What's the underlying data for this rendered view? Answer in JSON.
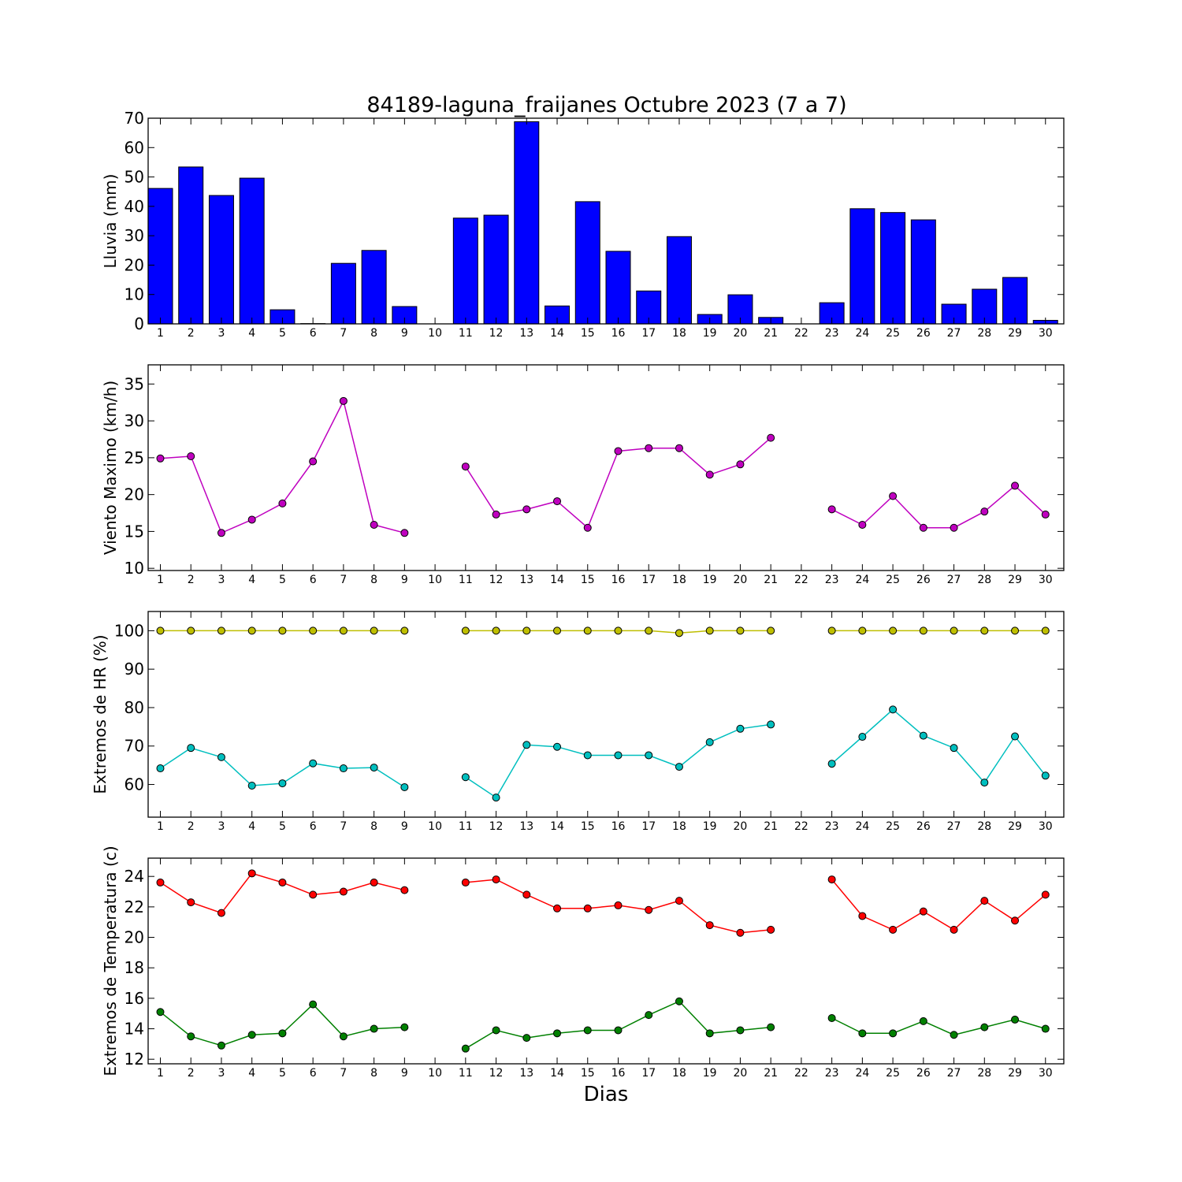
{
  "title": "84189-laguna_fraijanes Octubre 2023  (7 a 7)",
  "xlabel": "Dias",
  "days": [
    "1",
    "2",
    "3",
    "4",
    "5",
    "6",
    "7",
    "8",
    "9",
    "10",
    "11",
    "12",
    "13",
    "14",
    "15",
    "16",
    "17",
    "18",
    "19",
    "20",
    "21",
    "22",
    "23",
    "24",
    "25",
    "26",
    "27",
    "28",
    "29",
    "30"
  ],
  "chart_data": [
    {
      "type": "bar",
      "ylabel": "Lluvia (mm)",
      "ylim": [
        0,
        70
      ],
      "yticks": [
        0,
        10,
        20,
        30,
        40,
        50,
        60,
        70
      ],
      "color": "#0000ff",
      "series": [
        {
          "name": "",
          "values": [
            46.1,
            53.4,
            43.7,
            49.6,
            4.8,
            0.1,
            20.6,
            25.0,
            5.9,
            0,
            36.0,
            37.0,
            68.8,
            6.1,
            41.6,
            24.7,
            11.2,
            29.7,
            3.2,
            9.9,
            2.2,
            0,
            7.2,
            39.2,
            37.9,
            35.4,
            6.7,
            11.8,
            15.8,
            1.2
          ]
        }
      ]
    },
    {
      "type": "line",
      "ylabel": "Viento Maximo (km/h)",
      "ylim": [
        9.7,
        37.6
      ],
      "yticks": [
        10,
        15,
        20,
        25,
        30,
        35
      ],
      "series": [
        {
          "name": "",
          "color": "#bf00bf",
          "values": [
            24.9,
            25.2,
            14.8,
            16.6,
            18.8,
            24.5,
            32.7,
            15.9,
            14.8,
            null,
            23.8,
            17.3,
            18.0,
            19.1,
            15.5,
            25.9,
            26.3,
            26.3,
            22.7,
            24.1,
            27.7,
            null,
            18.0,
            15.9,
            19.8,
            15.5,
            15.5,
            17.7,
            21.2,
            17.3
          ]
        }
      ]
    },
    {
      "type": "line",
      "ylabel": "Extremos de HR (%)",
      "ylim": [
        51.5,
        105
      ],
      "yticks": [
        60,
        70,
        80,
        90,
        100
      ],
      "series": [
        {
          "name": "",
          "color": "#bfbf00",
          "values": [
            100,
            100,
            100,
            100,
            100,
            100,
            100,
            100,
            100,
            null,
            100,
            100,
            100,
            100,
            100,
            100,
            100,
            99.4,
            100,
            100,
            100,
            null,
            100,
            100,
            100,
            100,
            100,
            100,
            100,
            100
          ]
        },
        {
          "name": "",
          "color": "#00bfbf",
          "values": [
            64.2,
            69.5,
            67.1,
            59.7,
            60.3,
            65.5,
            64.2,
            64.4,
            59.3,
            null,
            61.9,
            56.6,
            70.3,
            69.8,
            67.6,
            67.6,
            67.6,
            64.6,
            71.0,
            74.5,
            75.6,
            null,
            65.4,
            72.4,
            79.5,
            72.7,
            69.5,
            60.5,
            72.5,
            62.3
          ]
        }
      ]
    },
    {
      "type": "line",
      "ylabel": "Extremos de Temperatura (c)",
      "ylim": [
        11.7,
        25.2
      ],
      "yticks": [
        12,
        14,
        16,
        18,
        20,
        22,
        24
      ],
      "series": [
        {
          "name": "",
          "color": "#ff0000",
          "values": [
            23.6,
            22.3,
            21.6,
            24.2,
            23.6,
            22.8,
            23.0,
            23.6,
            23.1,
            null,
            23.6,
            23.8,
            22.8,
            21.9,
            21.9,
            22.1,
            21.8,
            22.4,
            20.8,
            20.3,
            20.5,
            null,
            23.8,
            21.4,
            20.5,
            21.7,
            20.5,
            22.4,
            21.1,
            22.8
          ]
        },
        {
          "name": "",
          "color": "#008000",
          "values": [
            15.1,
            13.5,
            12.9,
            13.6,
            13.7,
            15.6,
            13.5,
            14.0,
            14.1,
            null,
            12.7,
            13.9,
            13.4,
            13.7,
            13.9,
            13.9,
            14.9,
            15.8,
            13.7,
            13.9,
            14.1,
            null,
            14.7,
            13.7,
            13.7,
            14.5,
            13.6,
            14.1,
            14.6,
            14.0
          ]
        }
      ]
    }
  ]
}
